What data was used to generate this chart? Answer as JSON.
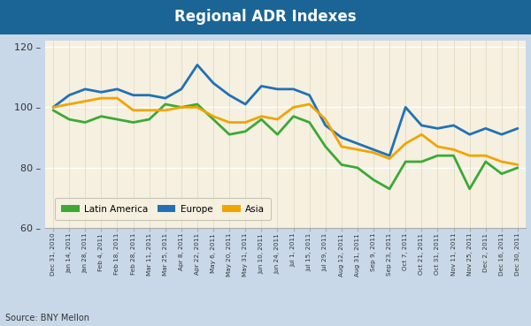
{
  "title": "Regional ADR Indexes",
  "title_bg_color": "#1a6496",
  "title_text_color": "#ffffff",
  "plot_bg_color": "#f5f0e0",
  "outer_bg_color": "#c8d8e8",
  "source_text": "Source: BNY Mellon",
  "ylim": [
    60,
    122
  ],
  "yticks": [
    60,
    80,
    100,
    120
  ],
  "line_width": 2.0,
  "colors": {
    "latin_america": "#3aaa35",
    "europe": "#2171b5",
    "asia": "#f0a500"
  },
  "labels": [
    "Latin America",
    "Europe",
    "Asia"
  ],
  "x_labels": [
    "Dec 31, 2010",
    "Jan 14, 2011",
    "Jan 28, 2011",
    "Feb 4, 2011",
    "Feb 18, 2011",
    "Feb 28, 2011",
    "Mar 11, 2011",
    "Mar 25, 2011",
    "Apr 8, 2011",
    "Apr 22, 2011",
    "May 6, 2011",
    "May 20, 2011",
    "May 31, 2011",
    "Jun 10, 2011",
    "Jun 24, 2011",
    "Jul 1, 2011",
    "Jul 15, 2011",
    "Jul 29, 2011",
    "Aug 12, 2011",
    "Aug 31, 2011",
    "Sep 9, 2011",
    "Sep 23, 2011",
    "Oct 7, 2011",
    "Oct 21, 2011",
    "Oct 31, 2011",
    "Nov 11, 2011",
    "Nov 25, 2011",
    "Dec 2, 2011",
    "Dec 16, 2011",
    "Dec 30, 2011"
  ],
  "latin_america": [
    99,
    96,
    95,
    97,
    96,
    95,
    96,
    101,
    100,
    101,
    96,
    91,
    92,
    96,
    91,
    97,
    95,
    87,
    81,
    80,
    76,
    73,
    82,
    82,
    84,
    84,
    73,
    82,
    78,
    80
  ],
  "europe": [
    100,
    104,
    106,
    105,
    106,
    104,
    104,
    103,
    106,
    114,
    108,
    104,
    101,
    107,
    106,
    106,
    104,
    94,
    90,
    88,
    86,
    84,
    100,
    94,
    93,
    94,
    91,
    93,
    91,
    93
  ],
  "asia": [
    100,
    101,
    102,
    103,
    103,
    99,
    99,
    99,
    100,
    100,
    97,
    95,
    95,
    97,
    96,
    100,
    101,
    96,
    87,
    86,
    85,
    83,
    88,
    91,
    87,
    86,
    84,
    84,
    82,
    81
  ]
}
